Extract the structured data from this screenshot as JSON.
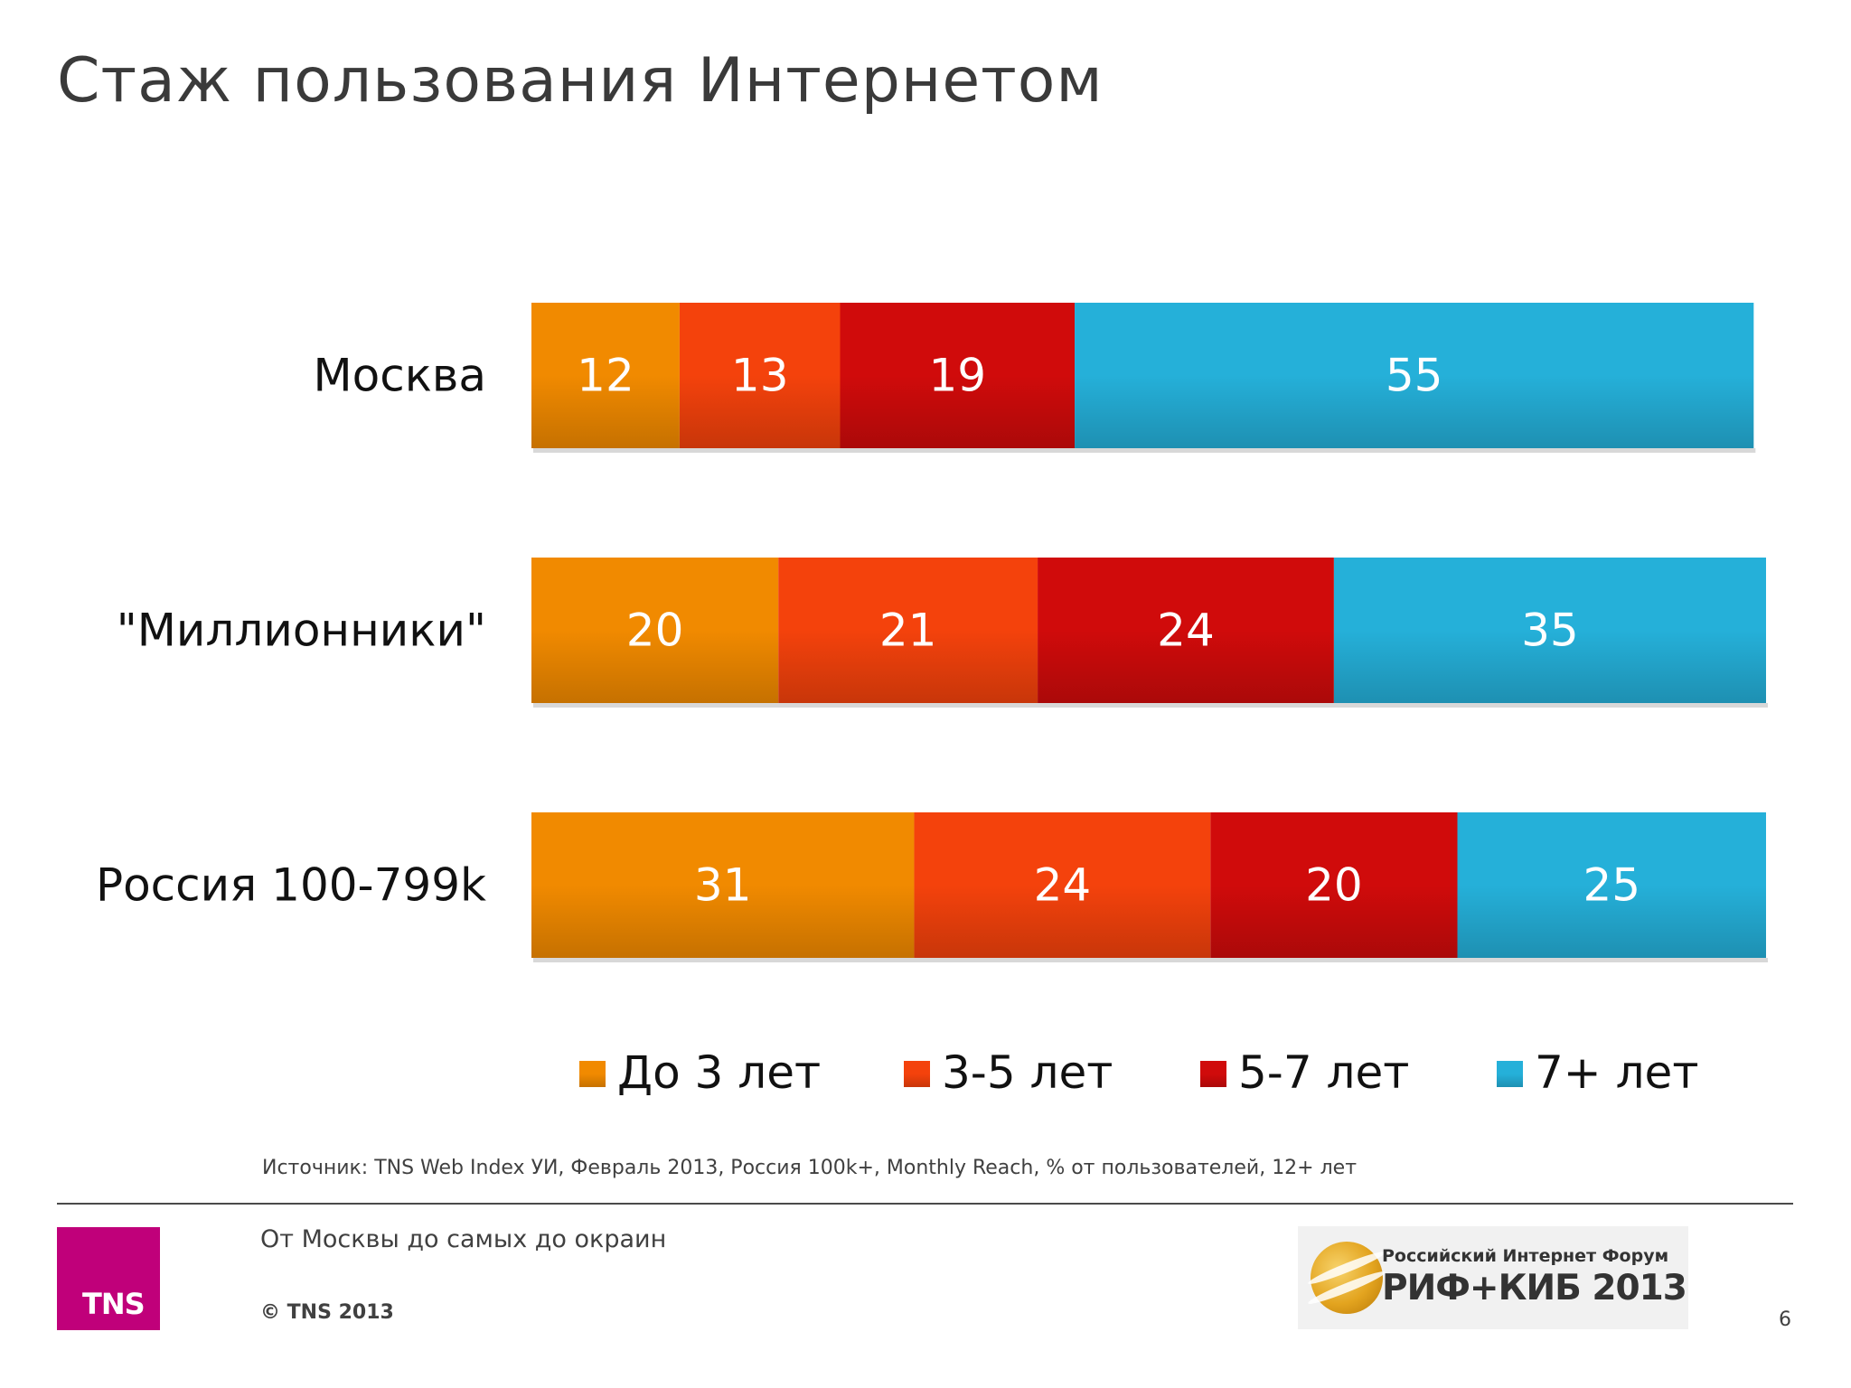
{
  "slide": {
    "title": "Стаж пользования Интернетом",
    "source": "Источник: TNS Web Index УИ, Февраль 2013, Россия 100k+, Monthly Reach, % от пользователей, 12+ лет",
    "tagline": "От Москвы до самых до окраин",
    "copyright": "© TNS 2013",
    "tns_logo": "TNS",
    "event_logo": {
      "line1": "Российский Интернет Форум",
      "line2": "РИФ+КИБ 2013"
    },
    "page_number": "6"
  },
  "chart_data": {
    "type": "bar",
    "orientation": "horizontal",
    "stacked": true,
    "categories": [
      "Москва",
      "\"Миллионники\"",
      "Россия 100-799k"
    ],
    "series": [
      {
        "name": "До 3 лет",
        "values": [
          12,
          20,
          31
        ],
        "color": "#f18a00"
      },
      {
        "name": "3-5 лет",
        "values": [
          13,
          21,
          24
        ],
        "color": "#f4420c"
      },
      {
        "name": "5-7 лет",
        "values": [
          19,
          24,
          20
        ],
        "color": "#d00b0b"
      },
      {
        "name": "7+ лет",
        "values": [
          55,
          35,
          25
        ],
        "color": "#25b0d9"
      }
    ],
    "data_labels": true,
    "legend_position": "bottom",
    "grid": false
  }
}
